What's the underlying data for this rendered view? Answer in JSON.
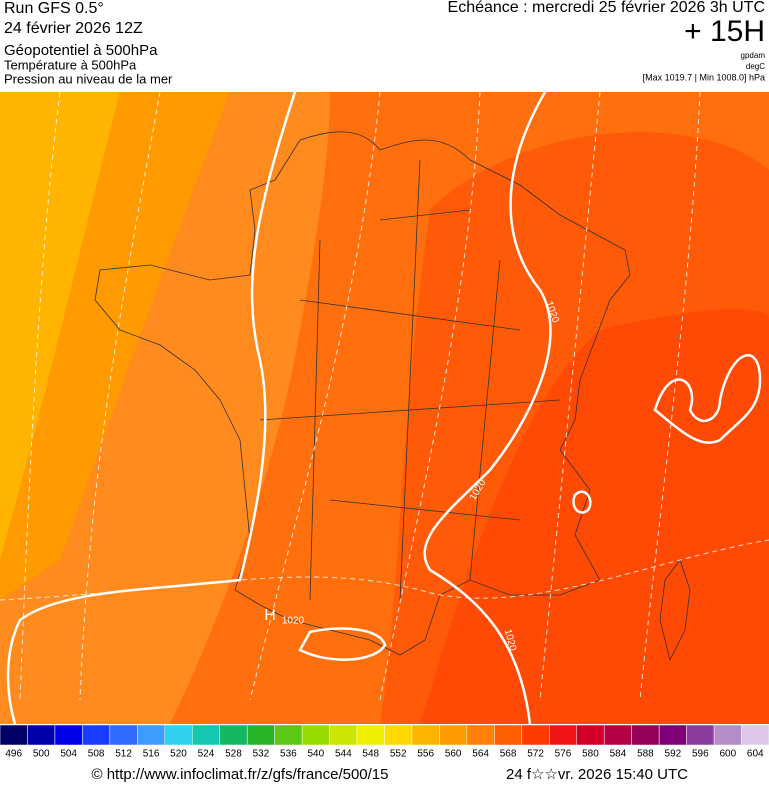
{
  "header": {
    "run": "Run GFS 0.5°",
    "run_date": "24 février 2026 12Z",
    "field_1": "Géopotentiel à 500hPa",
    "field_2": "Température à 500hPa",
    "field_3": "Pression au niveau de la mer",
    "echeance": "Echéance : mercredi 25 février 2026 3h UTC",
    "lead": "+ 15H",
    "unit_1": "gpdam",
    "unit_2": "degC",
    "range": "[Max 1019.7 | Min 1008.0] hPa"
  },
  "map": {
    "isobar_labels": [
      "1020",
      "1020",
      "1020",
      "1020"
    ],
    "high_label": "H"
  },
  "colorbar": {
    "values": [
      496,
      500,
      504,
      508,
      512,
      516,
      520,
      524,
      528,
      532,
      536,
      540,
      544,
      548,
      552,
      556,
      560,
      564,
      568,
      572,
      576,
      580,
      584,
      588,
      592,
      596,
      600,
      604
    ],
    "colors": [
      "#000066",
      "#0000a8",
      "#0000e6",
      "#1a3cff",
      "#2f6bff",
      "#3c9cff",
      "#2fd0f0",
      "#12c8b0",
      "#14b864",
      "#28b428",
      "#5cc814",
      "#96dc00",
      "#cde600",
      "#f0ef00",
      "#ffd800",
      "#ffb400",
      "#ff9a00",
      "#ff7f00",
      "#ff5f00",
      "#ff3c00",
      "#f01414",
      "#d20028",
      "#b40046",
      "#96005a",
      "#800078",
      "#8c3ca0",
      "#b48cc8",
      "#dcc8e6"
    ]
  },
  "footer": {
    "url": "© http://www.infoclimat.fr/z/gfs/france/500/15",
    "timestamp": "24 f☆☆vr. 2026 15:40 UTC"
  }
}
